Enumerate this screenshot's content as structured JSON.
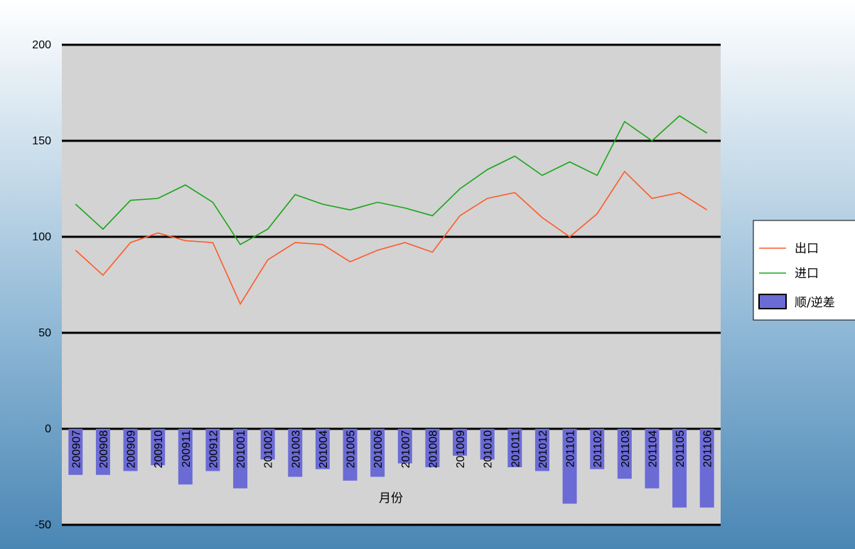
{
  "chart_data": {
    "type": "line+bar",
    "title": "",
    "xlabel": "月份",
    "ylabel": "",
    "ylim": [
      -50,
      200
    ],
    "yticks": [
      -50,
      0,
      50,
      100,
      150,
      200
    ],
    "grid": true,
    "legend_position": "right",
    "categories": [
      "200907",
      "200908",
      "200909",
      "200910",
      "200911",
      "200912",
      "201001",
      "201002",
      "201003",
      "201004",
      "201005",
      "201006",
      "201007",
      "201008",
      "201009",
      "201010",
      "201011",
      "201012",
      "201101",
      "201102",
      "201103",
      "201104",
      "201105",
      "201106"
    ],
    "series": [
      {
        "name": "出口",
        "type": "line",
        "color": "#ff5a28",
        "values": [
          93,
          80,
          97,
          102,
          98,
          97,
          65,
          88,
          97,
          96,
          87,
          93,
          97,
          92,
          111,
          120,
          123,
          110,
          100,
          112,
          134,
          120,
          123,
          114
        ]
      },
      {
        "name": "进口",
        "type": "line",
        "color": "#1aa51a",
        "values": [
          117,
          104,
          119,
          120,
          127,
          118,
          96,
          104,
          122,
          117,
          114,
          118,
          115,
          111,
          125,
          135,
          142,
          132,
          139,
          132,
          160,
          150,
          163,
          154
        ]
      },
      {
        "name": "顺/逆差",
        "type": "bar",
        "color": "#6b6bd6",
        "values": [
          -24,
          -24,
          -22,
          -19,
          -29,
          -22,
          -31,
          -16,
          -25,
          -21,
          -27,
          -25,
          -18,
          -20,
          -14,
          -16,
          -20,
          -22,
          -39,
          -21,
          -26,
          -31,
          -41,
          -41
        ]
      }
    ]
  }
}
